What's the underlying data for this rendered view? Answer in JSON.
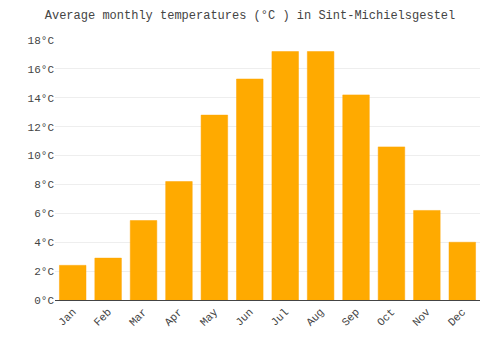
{
  "chart_data": {
    "type": "bar",
    "title": "Average monthly temperatures (°C ) in Sint-Michielsgestel",
    "categories": [
      "Jan",
      "Feb",
      "Mar",
      "Apr",
      "May",
      "Jun",
      "Jul",
      "Aug",
      "Sep",
      "Oct",
      "Nov",
      "Dec"
    ],
    "values": [
      2.4,
      2.9,
      5.5,
      8.2,
      12.8,
      15.3,
      17.2,
      17.2,
      14.2,
      10.6,
      6.2,
      4.0
    ],
    "color": "#FFAA00",
    "ylim": [
      0,
      18
    ],
    "yticks": [
      {
        "value": 0,
        "label": "0°C"
      },
      {
        "value": 2,
        "label": "2°C"
      },
      {
        "value": 4,
        "label": "4°C"
      },
      {
        "value": 6,
        "label": "6°C"
      },
      {
        "value": 8,
        "label": "8°C"
      },
      {
        "value": 10,
        "label": "10°C"
      },
      {
        "value": 12,
        "label": "12°C"
      },
      {
        "value": 14,
        "label": "14°C"
      },
      {
        "value": 16,
        "label": "16°C"
      },
      {
        "value": 18,
        "label": "18°C"
      }
    ],
    "grid": true
  }
}
